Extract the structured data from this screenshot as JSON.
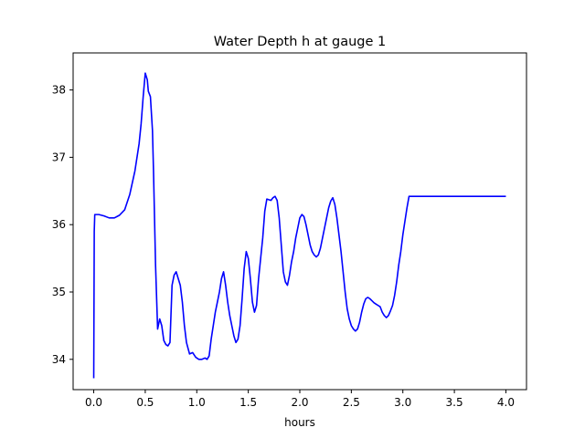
{
  "chart_data": {
    "type": "line",
    "title": "Water Depth h at gauge 1",
    "xlabel": "hours",
    "ylabel": "",
    "xlim": [
      -0.2,
      4.2
    ],
    "ylim": [
      33.55,
      38.55
    ],
    "xticks": [
      0.0,
      0.5,
      1.0,
      1.5,
      2.0,
      2.5,
      3.0,
      3.5,
      4.0
    ],
    "yticks": [
      34,
      35,
      36,
      37,
      38
    ],
    "xtick_labels": [
      "0.0",
      "0.5",
      "1.0",
      "1.5",
      "2.0",
      "2.5",
      "3.0",
      "3.5",
      "4.0"
    ],
    "ytick_labels": [
      "34",
      "35",
      "36",
      "37",
      "38"
    ],
    "grid": false,
    "legend": "none",
    "series": [
      {
        "color": "#0000ff",
        "x": [
          0.0,
          0.005,
          0.01,
          0.05,
          0.1,
          0.15,
          0.2,
          0.25,
          0.3,
          0.35,
          0.4,
          0.44,
          0.46,
          0.48,
          0.5,
          0.52,
          0.53,
          0.55,
          0.57,
          0.58,
          0.6,
          0.62,
          0.64,
          0.66,
          0.68,
          0.7,
          0.72,
          0.74,
          0.76,
          0.78,
          0.8,
          0.82,
          0.84,
          0.86,
          0.88,
          0.9,
          0.93,
          0.96,
          0.99,
          1.02,
          1.05,
          1.08,
          1.1,
          1.12,
          1.14,
          1.16,
          1.18,
          1.2,
          1.22,
          1.24,
          1.26,
          1.28,
          1.3,
          1.32,
          1.34,
          1.36,
          1.38,
          1.4,
          1.42,
          1.44,
          1.46,
          1.48,
          1.5,
          1.52,
          1.54,
          1.56,
          1.58,
          1.6,
          1.62,
          1.64,
          1.66,
          1.68,
          1.7,
          1.72,
          1.74,
          1.76,
          1.78,
          1.8,
          1.82,
          1.84,
          1.86,
          1.88,
          1.9,
          1.92,
          1.94,
          1.96,
          1.98,
          2.0,
          2.02,
          2.04,
          2.06,
          2.08,
          2.1,
          2.12,
          2.14,
          2.16,
          2.18,
          2.2,
          2.22,
          2.24,
          2.26,
          2.28,
          2.3,
          2.32,
          2.34,
          2.36,
          2.38,
          2.4,
          2.42,
          2.44,
          2.46,
          2.48,
          2.5,
          2.52,
          2.54,
          2.56,
          2.58,
          2.6,
          2.62,
          2.64,
          2.66,
          2.68,
          2.7,
          2.72,
          2.74,
          2.76,
          2.78,
          2.8,
          2.82,
          2.84,
          2.86,
          2.88,
          2.9,
          2.92,
          2.94,
          2.96,
          2.98,
          3.0,
          3.02,
          3.04,
          3.06,
          3.08,
          3.1,
          3.12,
          3.14,
          3.16,
          3.18,
          3.2,
          3.22,
          3.24,
          3.26,
          3.28,
          3.3,
          3.32,
          3.34,
          3.36,
          3.38,
          3.4,
          3.42,
          3.44,
          3.46,
          3.48,
          3.5,
          3.52,
          3.54,
          3.56,
          3.58,
          3.6,
          3.62,
          3.64,
          3.66,
          3.68,
          3.7,
          3.72,
          3.74,
          3.76,
          3.78,
          3.8,
          3.82,
          3.84,
          3.86,
          3.88,
          3.9,
          3.92,
          3.94,
          3.96,
          3.98,
          4.0
        ],
        "y": [
          33.72,
          35.9,
          36.15,
          36.15,
          36.13,
          36.1,
          36.1,
          36.14,
          36.22,
          36.45,
          36.8,
          37.2,
          37.5,
          37.9,
          38.25,
          38.15,
          37.98,
          37.9,
          37.4,
          36.8,
          35.4,
          34.45,
          34.6,
          34.5,
          34.28,
          34.22,
          34.2,
          34.25,
          35.1,
          35.25,
          35.3,
          35.2,
          35.1,
          34.85,
          34.5,
          34.25,
          34.08,
          34.1,
          34.03,
          34.0,
          34.0,
          34.02,
          34.0,
          34.05,
          34.3,
          34.5,
          34.7,
          34.85,
          35.0,
          35.2,
          35.3,
          35.1,
          34.85,
          34.65,
          34.5,
          34.35,
          34.25,
          34.3,
          34.5,
          34.9,
          35.35,
          35.6,
          35.5,
          35.2,
          34.85,
          34.7,
          34.8,
          35.2,
          35.5,
          35.8,
          36.2,
          36.38,
          36.37,
          36.36,
          36.4,
          36.42,
          36.36,
          36.1,
          35.7,
          35.3,
          35.15,
          35.1,
          35.25,
          35.45,
          35.6,
          35.8,
          35.95,
          36.1,
          36.15,
          36.12,
          36.0,
          35.85,
          35.7,
          35.6,
          35.55,
          35.52,
          35.55,
          35.65,
          35.8,
          35.95,
          36.1,
          36.25,
          36.35,
          36.4,
          36.3,
          36.1,
          35.85,
          35.6,
          35.3,
          35.0,
          34.75,
          34.6,
          34.5,
          34.45,
          34.42,
          34.45,
          34.55,
          34.7,
          34.82,
          34.9,
          34.92,
          34.9,
          34.87,
          34.84,
          34.82,
          34.8,
          34.78,
          34.7,
          34.65,
          34.62,
          34.65,
          34.72,
          34.8,
          34.95,
          35.15,
          35.4,
          35.6,
          35.85,
          36.05,
          36.25,
          36.42,
          36.42,
          36.42,
          36.42,
          36.42,
          36.42,
          36.42,
          36.42,
          36.42,
          36.42,
          36.42,
          36.42,
          36.42,
          36.42,
          36.42,
          36.42,
          36.42,
          36.42,
          36.42,
          36.42,
          36.42,
          36.42,
          36.42,
          36.42,
          36.42,
          36.42,
          36.42,
          36.42,
          36.42,
          36.42,
          36.42,
          36.42,
          36.42,
          36.42,
          36.42,
          36.42,
          36.42,
          36.42,
          36.42,
          36.42,
          36.42,
          36.42,
          36.42,
          36.42,
          36.42,
          36.42,
          36.42,
          36.42
        ]
      }
    ]
  }
}
